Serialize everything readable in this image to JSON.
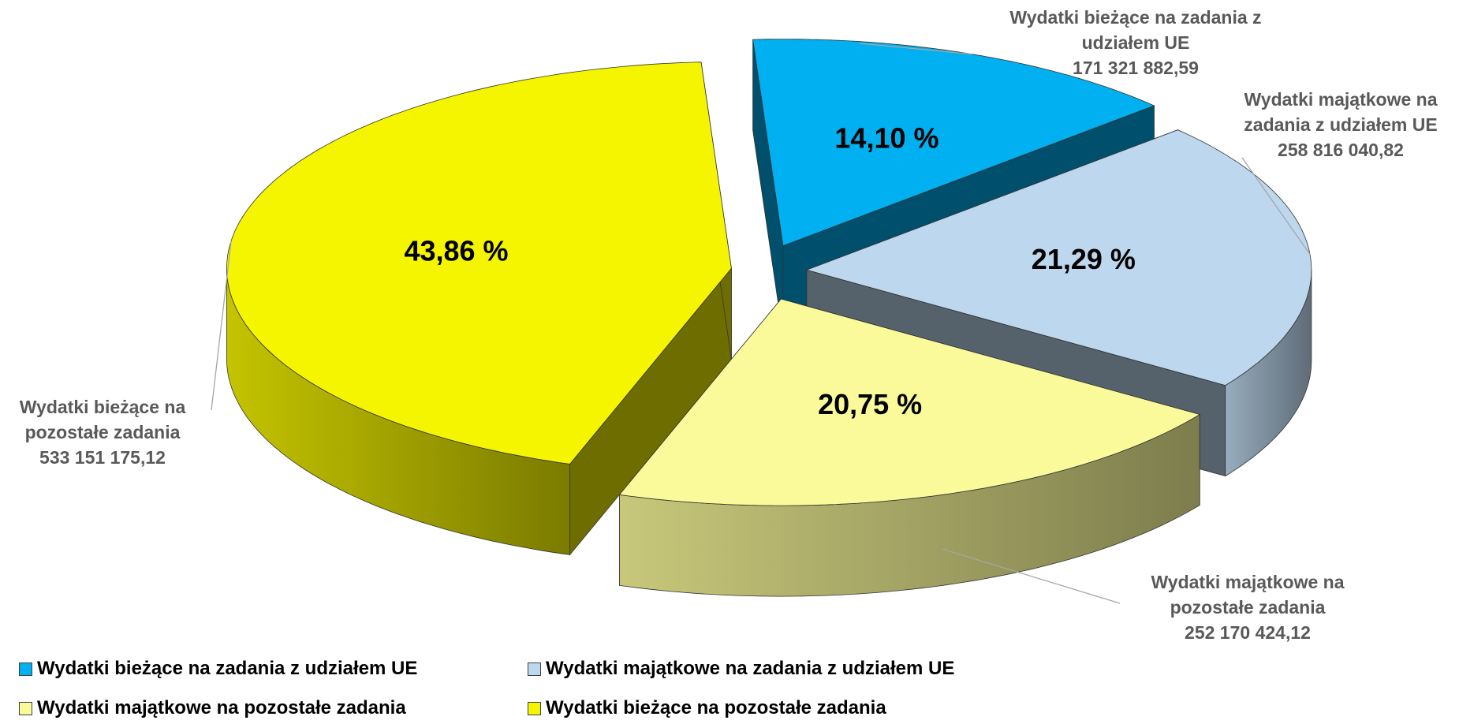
{
  "chart_data": {
    "type": "pie3d",
    "categories": [
      "Wydatki bieżące na zadania z udziałem UE",
      "Wydatki majątkowe na zadania z udziałem UE",
      "Wydatki majątkowe na pozostałe zadania",
      "Wydatki bieżące na pozostałe zadania"
    ],
    "values": [
      14.1,
      21.29,
      20.75,
      43.86
    ],
    "value_labels": [
      "14,10 %",
      "21,29 %",
      "20,75 %",
      "43,86 %"
    ],
    "amounts": [
      "171 321 882,59",
      "258 816 040,82",
      "252 170 424,12",
      "533 151 175,12"
    ],
    "colors": [
      "#00b0f0",
      "#bdd7ee",
      "#fafa9a",
      "#f5f500"
    ],
    "legend": "bottom"
  }
}
